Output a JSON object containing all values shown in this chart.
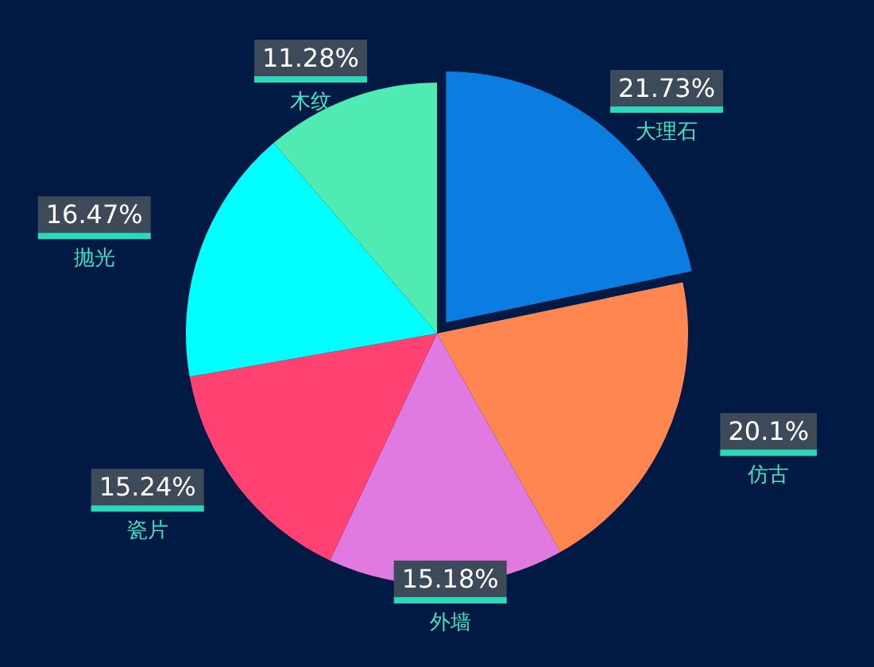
{
  "chart_data": {
    "type": "pie",
    "categories": [
      "大理石",
      "仿古",
      "外墙",
      "瓷片",
      "抛光",
      "木纹"
    ],
    "values": [
      21.73,
      20.1,
      15.18,
      15.24,
      16.47,
      11.28
    ],
    "value_labels": [
      "21.73%",
      "20.1%",
      "15.18%",
      "15.24%",
      "16.47%",
      "11.28%"
    ],
    "colors": [
      "#0b7de0",
      "#ff8551",
      "#e07ae0",
      "#ff4271",
      "#00ffff",
      "#50eab3"
    ],
    "legend": false
  }
}
